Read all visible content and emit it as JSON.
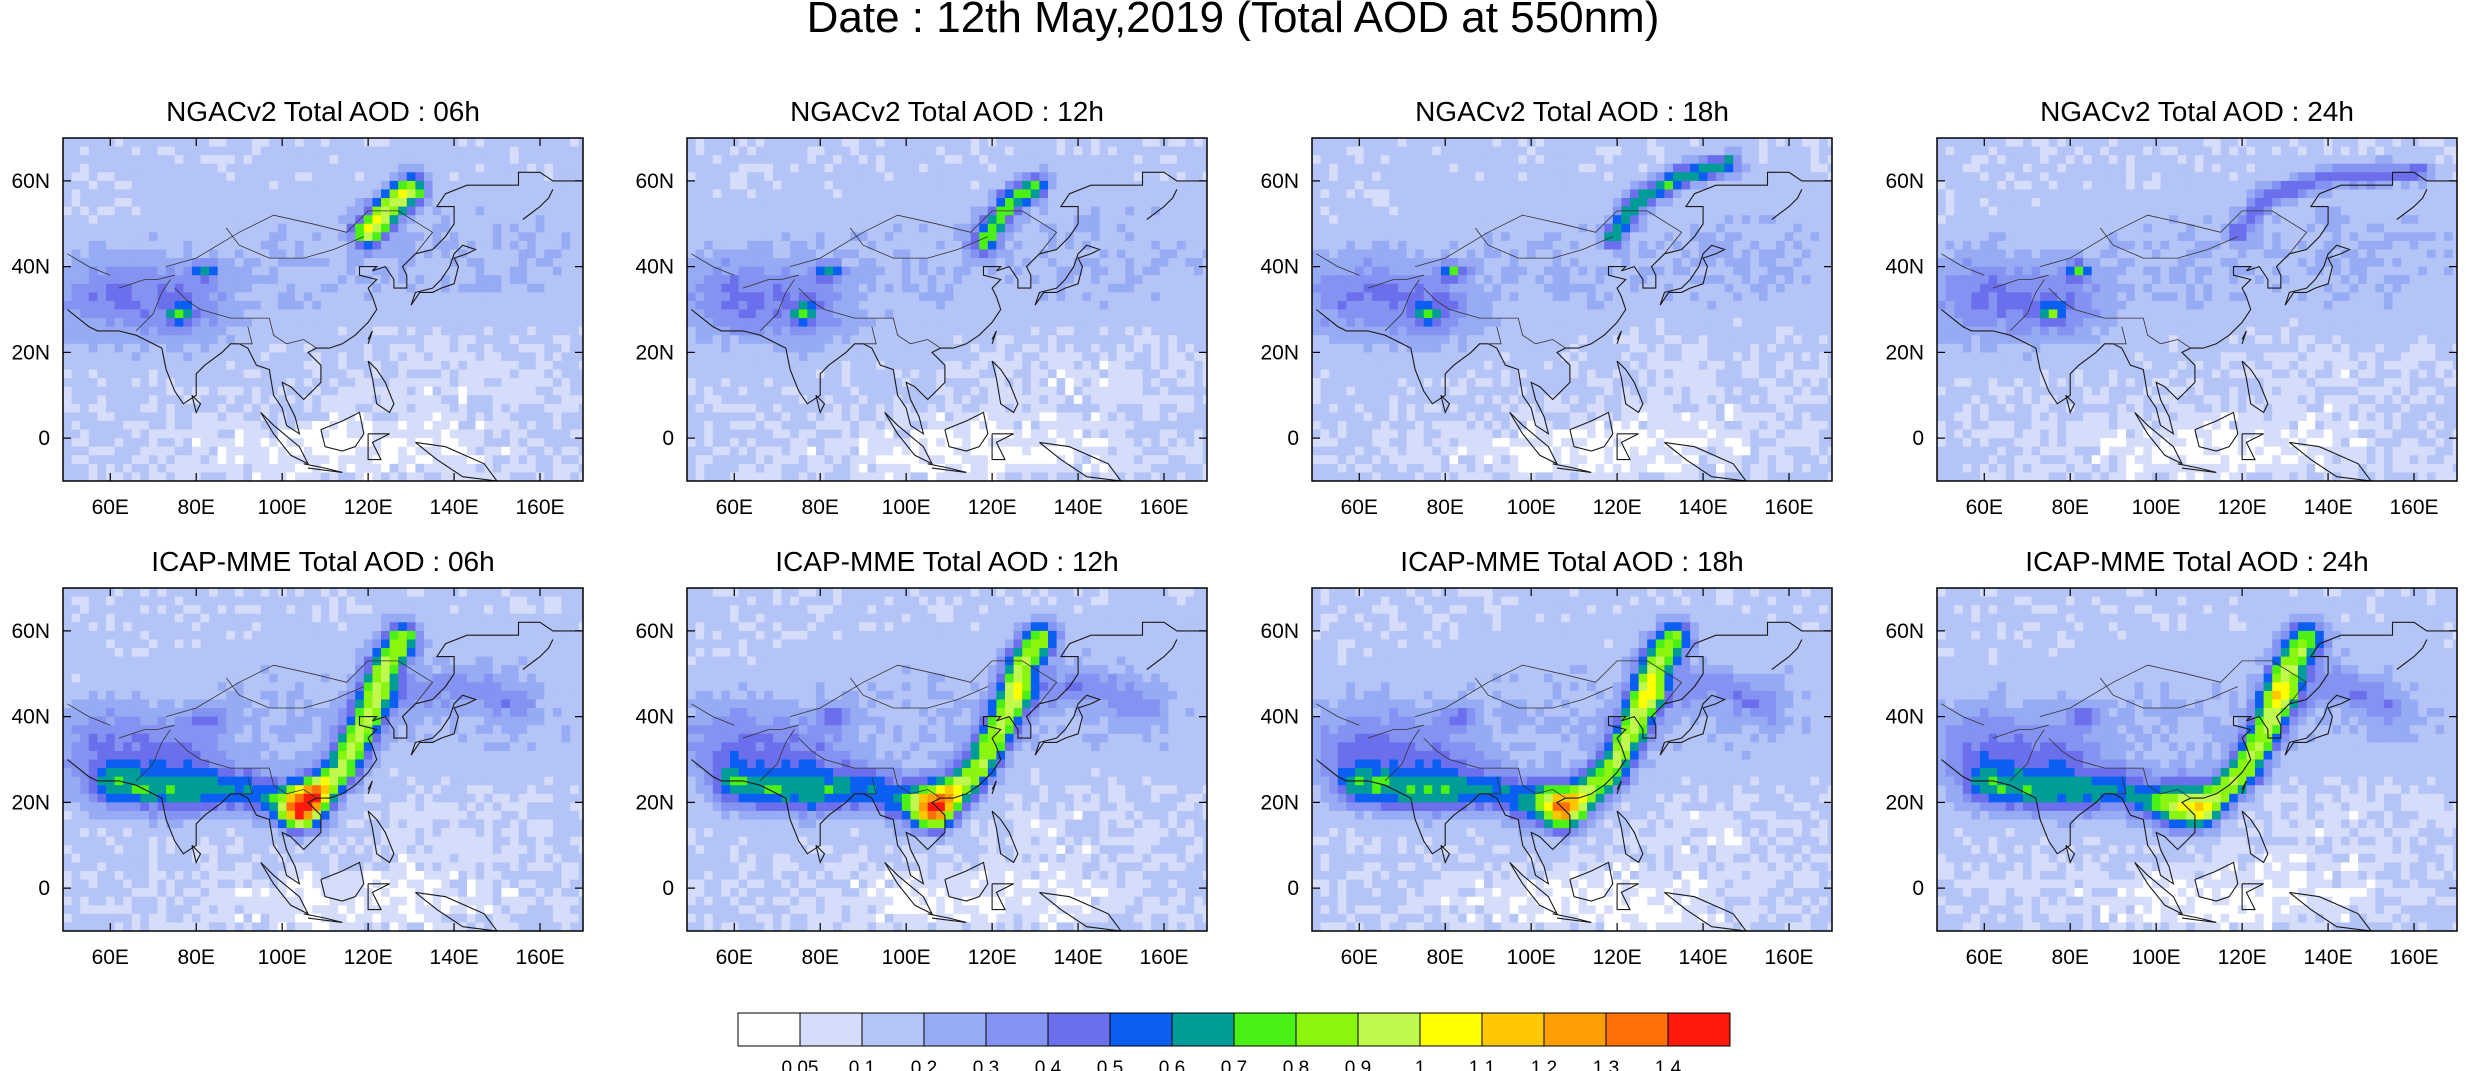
{
  "figure": {
    "title": "Date : 12th May,2019 (Total AOD at 550nm)"
  },
  "map_extent": {
    "lon_min": 49,
    "lon_max": 170,
    "lat_min": -10,
    "lat_max": 70
  },
  "axis_ticks": {
    "x": [
      {
        "value": 60,
        "label": "60E"
      },
      {
        "value": 80,
        "label": "80E"
      },
      {
        "value": 100,
        "label": "100E"
      },
      {
        "value": 120,
        "label": "120E"
      },
      {
        "value": 140,
        "label": "140E"
      },
      {
        "value": 160,
        "label": "160E"
      }
    ],
    "y": [
      {
        "value": 60,
        "label": "60N"
      },
      {
        "value": 40,
        "label": "40N"
      },
      {
        "value": 20,
        "label": "20N"
      },
      {
        "value": 0,
        "label": "0"
      }
    ]
  },
  "panels": [
    {
      "title": "NGACv2 Total AOD : 06h",
      "model": "NGACv2",
      "hour": 6
    },
    {
      "title": "NGACv2 Total AOD : 12h",
      "model": "NGACv2",
      "hour": 12
    },
    {
      "title": "NGACv2 Total AOD : 18h",
      "model": "NGACv2",
      "hour": 18
    },
    {
      "title": "NGACv2 Total AOD : 24h",
      "model": "NGACv2",
      "hour": 24
    },
    {
      "title": "ICAP-MME Total AOD : 06h",
      "model": "ICAP-MME",
      "hour": 6
    },
    {
      "title": "ICAP-MME Total AOD : 12h",
      "model": "ICAP-MME",
      "hour": 12
    },
    {
      "title": "ICAP-MME Total AOD : 18h",
      "model": "ICAP-MME",
      "hour": 18
    },
    {
      "title": "ICAP-MME Total AOD : 24h",
      "model": "ICAP-MME",
      "hour": 24
    }
  ],
  "colorbar": {
    "colors": [
      "#ffffff",
      "#d5ddfa",
      "#b4c4f7",
      "#96abf4",
      "#8493f2",
      "#6b6fec",
      "#0a5ff2",
      "#009c98",
      "#4bf016",
      "#8af50e",
      "#c0f84e",
      "#ffff00",
      "#ffc700",
      "#ff9f05",
      "#ff7009",
      "#ff1a0d"
    ],
    "labels": [
      "0.05",
      "0.1",
      "0.2",
      "0.3",
      "0.4",
      "0.5",
      "0.6",
      "0.7",
      "0.8",
      "0.9",
      "1",
      "1.1",
      "1.2",
      "1.3",
      "1.4"
    ]
  }
}
